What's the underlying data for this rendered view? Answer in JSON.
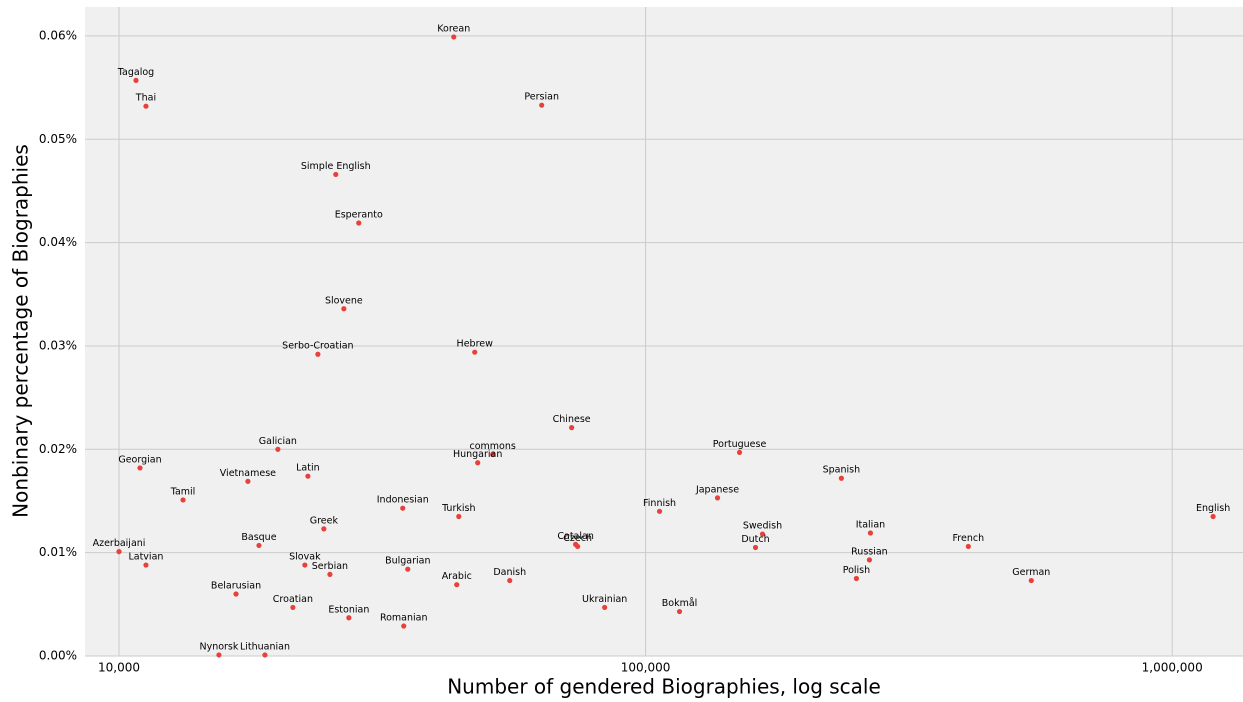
{
  "chart_data": {
    "type": "scatter",
    "x_label": "Number of gendered Biographies, log scale",
    "y_label": "Nonbinary percentage of Biographies",
    "x_log": true,
    "grid": true,
    "color": "#e8413c",
    "xlim": [
      8618,
      1363000
    ],
    "ylim": [
      0,
      0.0628
    ],
    "xticks": [
      {
        "value": 10000,
        "label": "10,000"
      },
      {
        "value": 100000,
        "label": "100,000"
      },
      {
        "value": 1000000,
        "label": "1,000,000"
      }
    ],
    "yticks": [
      {
        "value": 0,
        "label": "0.00%"
      },
      {
        "value": 0.01,
        "label": "0.01%"
      },
      {
        "value": 0.02,
        "label": "0.02%"
      },
      {
        "value": 0.03,
        "label": "0.03%"
      },
      {
        "value": 0.04,
        "label": "0.04%"
      },
      {
        "value": 0.05,
        "label": "0.05%"
      },
      {
        "value": 0.06,
        "label": "0.06%"
      }
    ],
    "point_labels": [
      "Korean",
      "Tagalog",
      "Thai",
      "Persian",
      "Simple English",
      "Esperanto",
      "Slovene",
      "Serbo-Croatian",
      "Hebrew",
      "Chinese",
      "Galician",
      "commons",
      "Hungarian",
      "Portuguese",
      "Georgian",
      "Latin",
      "Vietnamese",
      "Spanish",
      "Tamil",
      "Japanese",
      "Finnish",
      "Indonesian",
      "Turkish",
      "English",
      "Greek",
      "Italian",
      "Swedish",
      "Catalan",
      "Czech",
      "Basque",
      "French",
      "Dutch",
      "Azerbaijani",
      "Russian",
      "Latvian",
      "Slovak",
      "Serbian",
      "Bulgarian",
      "Polish",
      "German",
      "Danish",
      "Arabic",
      "Belarusian",
      "Croatian",
      "Ukrainian",
      "Bokmål",
      "Estonian",
      "Romanian",
      "Nynorsk",
      "Lithuanian"
    ],
    "x": [
      43220,
      10771,
      11250,
      63490,
      25800,
      28530,
      26730,
      23860,
      47370,
      72370,
      20030,
      51240,
      47990,
      150800,
      10960,
      22840,
      17570,
      235400,
      13230,
      136960,
      106300,
      34580,
      44180,
      1196000,
      24490,
      267300,
      166700,
      73640,
      74300,
      18440,
      410100,
      161700,
      10000,
      266100,
      11250,
      22540,
      25150,
      35350,
      251400,
      540100,
      55210,
      43790,
      16680,
      21390,
      83610,
      116000,
      27320,
      34730,
      15480,
      18930
    ],
    "values": [
      0.0599,
      0.0557,
      0.0532,
      0.0533,
      0.0466,
      0.0419,
      0.0336,
      0.0292,
      0.0294,
      0.0221,
      0.02,
      0.0195,
      0.0187,
      0.0197,
      0.0182,
      0.0174,
      0.0169,
      0.0172,
      0.0151,
      0.0153,
      0.014,
      0.0143,
      0.0135,
      0.0135,
      0.0123,
      0.0119,
      0.0118,
      0.0108,
      0.0106,
      0.0107,
      0.0106,
      0.0105,
      0.0101,
      0.0093,
      0.0088,
      0.0088,
      0.0079,
      0.0084,
      0.0075,
      0.0073,
      0.0073,
      0.0069,
      0.006,
      0.0047,
      0.0047,
      0.0043,
      0.0037,
      0.0029,
      0.0001,
      0.0001
    ]
  }
}
